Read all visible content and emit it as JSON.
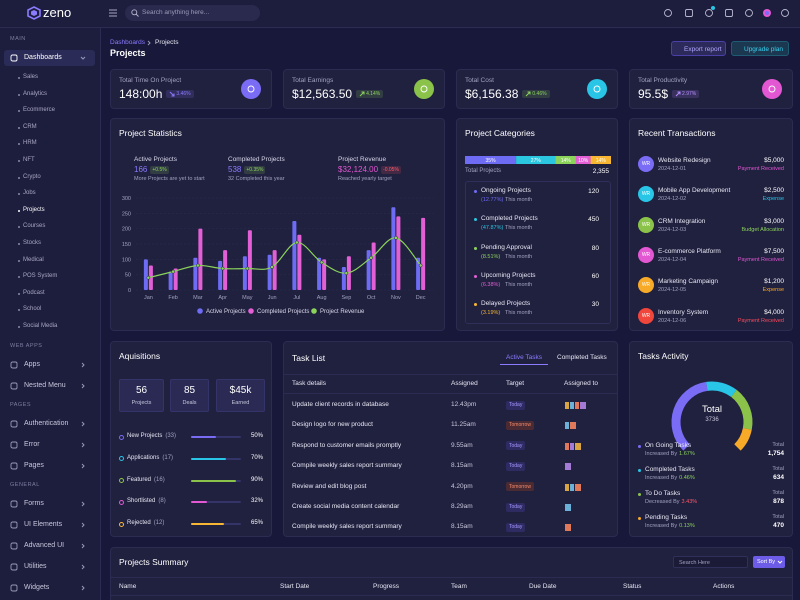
{
  "sidebar": {
    "brand": "zeno",
    "sections": [
      {
        "title": "MAIN",
        "items": [
          {
            "label": "Dashboards",
            "active": true,
            "children": [
              {
                "label": "Sales"
              },
              {
                "label": "Analytics"
              },
              {
                "label": "Ecommerce"
              },
              {
                "label": "CRM"
              },
              {
                "label": "HRM"
              },
              {
                "label": "NFT"
              },
              {
                "label": "Crypto"
              },
              {
                "label": "Jobs"
              },
              {
                "label": "Projects",
                "active": true
              },
              {
                "label": "Courses"
              },
              {
                "label": "Stocks"
              },
              {
                "label": "Medical"
              },
              {
                "label": "POS System"
              },
              {
                "label": "Podcast"
              },
              {
                "label": "School"
              },
              {
                "label": "Social Media"
              }
            ]
          }
        ]
      },
      {
        "title": "WEB APPS",
        "items": [
          {
            "label": "Apps"
          },
          {
            "label": "Nested Menu"
          }
        ]
      },
      {
        "title": "PAGES",
        "items": [
          {
            "label": "Authentication"
          },
          {
            "label": "Error"
          },
          {
            "label": "Pages"
          }
        ]
      },
      {
        "title": "GENERAL",
        "items": [
          {
            "label": "Forms"
          },
          {
            "label": "UI Elements"
          },
          {
            "label": "Advanced UI"
          },
          {
            "label": "Utilities"
          },
          {
            "label": "Widgets"
          }
        ]
      }
    ]
  },
  "header": {
    "search_placeholder": "Search anything here..."
  },
  "page": {
    "breadcrumb": [
      "Dashboards",
      "Projects"
    ],
    "title": "Projects",
    "buttons": [
      "Export report",
      "Upgrade plan"
    ]
  },
  "stats": [
    {
      "label": "Total Time On Project",
      "value": "148:00h",
      "change": "3.46%",
      "trend": "down",
      "badge_color": "#8b7bff",
      "icon_color": "#7b6cf6"
    },
    {
      "label": "Total Earnings",
      "value": "$12,563.50",
      "change": "4.14%",
      "trend": "up",
      "badge_color": "#8bd35b",
      "icon_color": "#8bc34a"
    },
    {
      "label": "Total Cost",
      "value": "$6,156.38",
      "change": "0.46%",
      "trend": "up",
      "badge_color": "#8bd35b",
      "icon_color": "#29c5e6"
    },
    {
      "label": "Total Productivity",
      "value": "95.5$",
      "change": "2.97%",
      "trend": "up",
      "badge_color": "#b58cff",
      "icon_color": "#e357d2"
    }
  ],
  "project_statistics": {
    "title": "Project Statistics",
    "kpis": [
      {
        "label": "Active Projects",
        "value": "166",
        "change": "+0.5%",
        "note": "More Projects are yet to start",
        "value_color": "#8b7bff",
        "change_color": "#8bd35b"
      },
      {
        "label": "Completed Projects",
        "value": "538",
        "change": "+0.35%",
        "note": "32 Completed this year",
        "value_color": "#8b7bff",
        "change_color": "#8bd35b"
      },
      {
        "label": "Project Revenue",
        "value": "$32,124.00",
        "change": "-0.05%",
        "note": "Reached yearly target",
        "value_color": "#e357d2",
        "change_color": "#ff5a6a"
      }
    ],
    "chart": {
      "type": "bar",
      "categories": [
        "Jan",
        "Feb",
        "Mar",
        "Apr",
        "May",
        "Jun",
        "Jul",
        "Aug",
        "Sep",
        "Oct",
        "Nov",
        "Dec"
      ],
      "series": [
        {
          "name": "Active Projects",
          "color": "#6e6cf5",
          "values": [
            100,
            60,
            105,
            95,
            110,
            115,
            225,
            105,
            75,
            130,
            270,
            105
          ]
        },
        {
          "name": "Completed Projects",
          "color": "#e25fd6",
          "values": [
            80,
            70,
            200,
            130,
            195,
            130,
            180,
            100,
            110,
            155,
            240,
            235
          ]
        },
        {
          "name": "Project Revenue",
          "type": "line",
          "color": "#8bd35b",
          "values": [
            40,
            60,
            80,
            70,
            70,
            75,
            155,
            90,
            55,
            105,
            170,
            80
          ]
        }
      ],
      "ylim": [
        0,
        300
      ],
      "yticks": [
        0,
        50,
        100,
        150,
        200,
        250,
        300
      ],
      "grid": true
    }
  },
  "project_categories": {
    "title": "Project Categories",
    "bar": [
      {
        "value": 35,
        "label": "35%",
        "color": "#6e6cf5"
      },
      {
        "value": 27,
        "label": "27%",
        "color": "#2bc6e0"
      },
      {
        "value": 14,
        "label": "14%",
        "color": "#8bd35b"
      },
      {
        "value": 10,
        "label": "10%",
        "color": "#e25fd6"
      },
      {
        "value": 14,
        "label": "14%",
        "color": "#f7b733"
      }
    ],
    "total_label": "Total Projects",
    "total": "2,355",
    "items": [
      {
        "name": "Ongoing Projects",
        "share": "(12.77%)",
        "note": "This month",
        "value": 120,
        "color": "#6e6cf5"
      },
      {
        "name": "Completed Projects",
        "share": "(47.87%)",
        "note": "This month",
        "value": 450,
        "color": "#2bc6e0"
      },
      {
        "name": "Pending Approval",
        "share": "(8.51%)",
        "note": "This month",
        "value": 80,
        "color": "#8bd35b"
      },
      {
        "name": "Upcoming Projects",
        "share": "(6.38%)",
        "note": "This month",
        "value": 60,
        "color": "#e25fd6"
      },
      {
        "name": "Delayed Projects",
        "share": "(3.19%)",
        "note": "This month",
        "value": 30,
        "color": "#f7b733"
      }
    ]
  },
  "recent_transactions": {
    "title": "Recent Transactions",
    "items": [
      {
        "initials": "WR",
        "name": "Website Redesign",
        "date": "2024-12-01",
        "amount": "$5,000",
        "status": "Payment Received",
        "color": "#7b6cf6",
        "status_color": "#e357d2"
      },
      {
        "initials": "WR",
        "name": "Mobile App Development",
        "date": "2024-12-02",
        "amount": "$2,500",
        "status": "Expense",
        "color": "#29c5e6",
        "status_color": "#29c5e6"
      },
      {
        "initials": "WR",
        "name": "CRM Integration",
        "date": "2024-12-03",
        "amount": "$3,000",
        "status": "Budget Allocation",
        "color": "#8bc34a",
        "status_color": "#8bd35b"
      },
      {
        "initials": "WR",
        "name": "E-commerce Platform",
        "date": "2024-12-04",
        "amount": "$7,500",
        "status": "Payment Received",
        "color": "#e357d2",
        "status_color": "#e357d2"
      },
      {
        "initials": "WR",
        "name": "Marketing Campaign",
        "date": "2024-12-05",
        "amount": "$1,200",
        "status": "Expense",
        "color": "#f7a928",
        "status_color": "#f7a928"
      },
      {
        "initials": "WR",
        "name": "Inventory System",
        "date": "2024-12-06",
        "amount": "$4,000",
        "status": "Payment Received",
        "color": "#f0463c",
        "status_color": "#ff4b5c"
      }
    ]
  },
  "acquisitions": {
    "title": "Aquisitions",
    "stats": [
      {
        "value": "56",
        "label": "Projects"
      },
      {
        "value": "85",
        "label": "Deals"
      },
      {
        "value": "$45k",
        "label": "Earned"
      }
    ],
    "items": [
      {
        "name": "New Projects",
        "count": "(33)",
        "value": 50,
        "label": "50%",
        "color": "#7b6cf6"
      },
      {
        "name": "Applications",
        "count": "(17)",
        "value": 70,
        "label": "70%",
        "color": "#29c5e6"
      },
      {
        "name": "Featured",
        "count": "(16)",
        "value": 90,
        "label": "90%",
        "color": "#8bc34a"
      },
      {
        "name": "Shortlisted",
        "count": "(8)",
        "value": 32,
        "label": "32%",
        "color": "#e357d2"
      },
      {
        "name": "Rejected",
        "count": "(12)",
        "value": 65,
        "label": "65%",
        "color": "#f7b733"
      }
    ]
  },
  "task_list": {
    "title": "Task List",
    "tabs": [
      {
        "label": "Active Tasks",
        "active": true
      },
      {
        "label": "Completed Tasks"
      }
    ],
    "columns": [
      "Task details",
      "Assigned",
      "Target",
      "Assigned to"
    ],
    "rows": [
      {
        "task": "Update client records in database",
        "time": "12.43pm",
        "target": "Today"
      },
      {
        "task": "Design logo for new product",
        "time": "11.25am",
        "target": "Tomorrow"
      },
      {
        "task": "Respond to customer emails promptly",
        "time": "9.55am",
        "target": "Today"
      },
      {
        "task": "Compile weekly sales report summary",
        "time": "8.15am",
        "target": "Today"
      },
      {
        "task": "Review and edit blog post",
        "time": "4.20pm",
        "target": "Tomorrow"
      },
      {
        "task": "Create social media content calendar",
        "time": "8.29am",
        "target": "Today"
      },
      {
        "task": "Compile weekly sales report summary",
        "time": "8.15am",
        "target": "Today"
      }
    ]
  },
  "tasks_activity": {
    "title": "Tasks Activity",
    "total_label": "Total",
    "total": 3736,
    "items": [
      {
        "name": "On Going Tasks",
        "note": "Increased By",
        "change": "1.67%",
        "trend": "up",
        "total_label": "Total",
        "total": {
          "value": 1754,
          "label": "1,754"
        },
        "color": "#7b6cf6"
      },
      {
        "name": "Completed Tasks",
        "note": "Increased By",
        "change": "0.46%",
        "trend": "up",
        "total_label": "Total",
        "total": 634,
        "color": "#29c5e6"
      },
      {
        "name": "To Do Tasks",
        "note": "Decreased By",
        "change": "3.43%",
        "trend": "down",
        "total_label": "Total",
        "total": 878,
        "color": "#8bc34a"
      },
      {
        "name": "Pending Tasks",
        "note": "Increased By",
        "change": "0.13%",
        "trend": "up",
        "total_label": "Total",
        "total": 470,
        "color": "#f7a928"
      }
    ]
  },
  "projects_summary": {
    "title": "Projects Summary",
    "search_placeholder": "Search Here",
    "sort_button": "Sort By",
    "columns": [
      "Name",
      "Start Date",
      "Progress",
      "Team",
      "Due Date",
      "Status",
      "Actions"
    ]
  }
}
